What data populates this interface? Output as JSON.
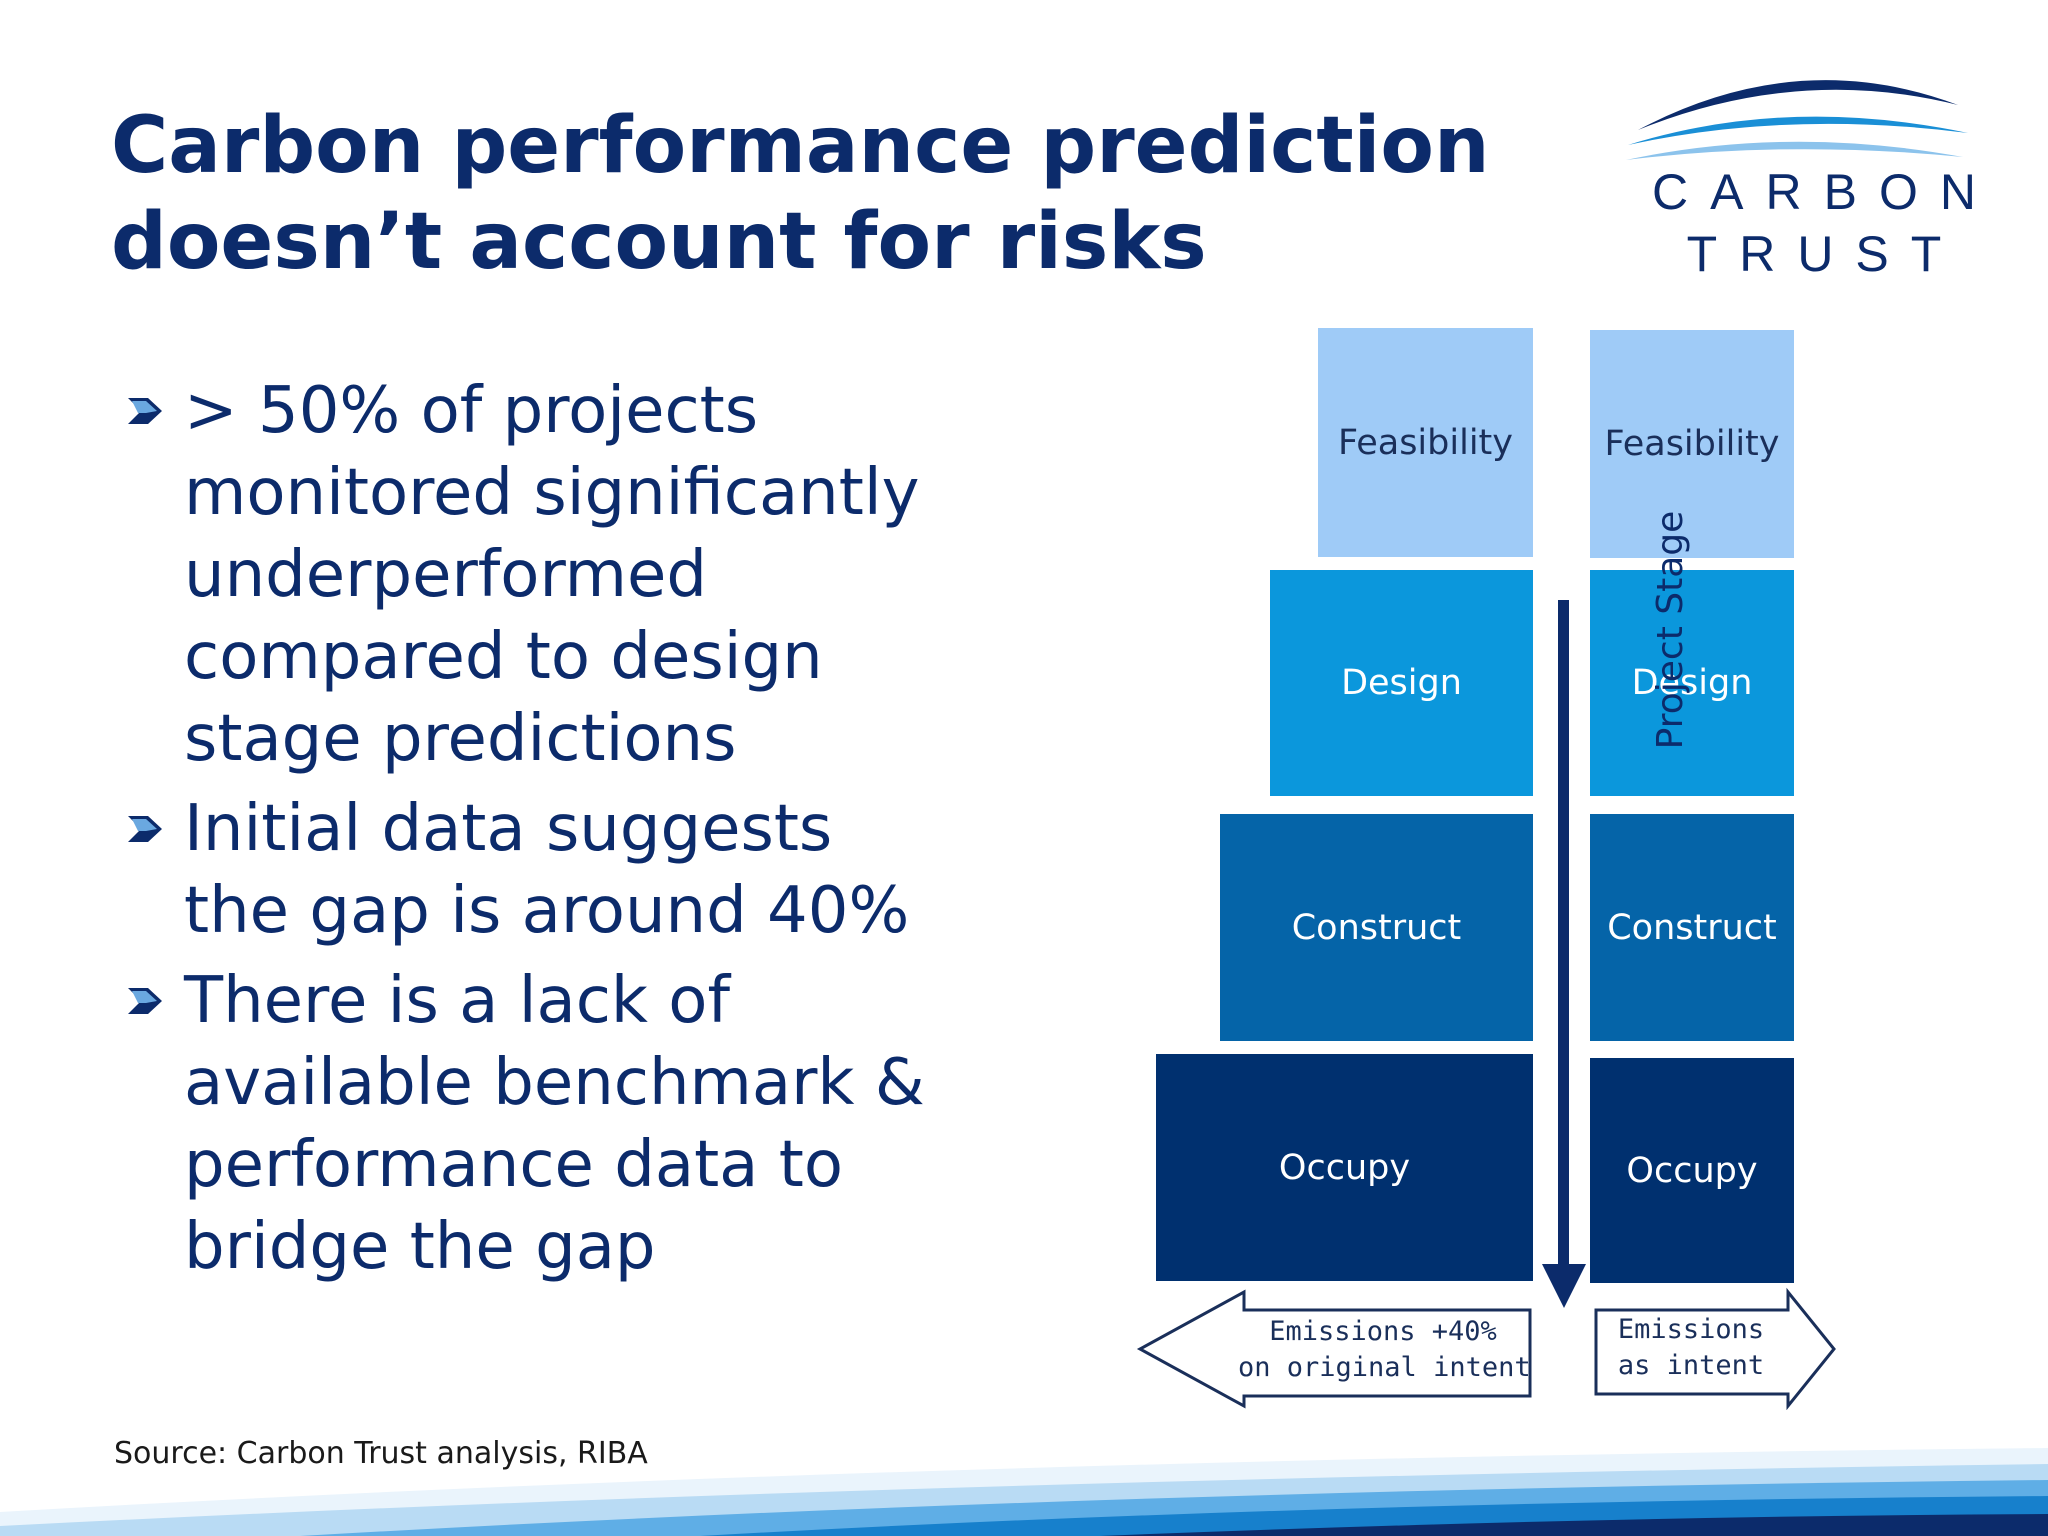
{
  "slide": {
    "title_lines": [
      "Carbon performance prediction",
      "doesn’t account for risks"
    ],
    "source": "Source: Carbon Trust analysis, RIBA"
  },
  "logo": {
    "line1": "CARBON",
    "line2": "TRUST",
    "colors": {
      "arc_dark": "#0c2b6b",
      "arc_mid": "#1a8fd6",
      "arc_light": "#8cc3ec"
    }
  },
  "bullets": [
    {
      "lines": [
        "> 50% of projects",
        "monitored significantly",
        "underperformed",
        "compared to design",
        "stage predictions"
      ]
    },
    {
      "lines": [
        "Initial data suggests",
        "the gap is around 40%"
      ]
    },
    {
      "lines": [
        "There is a lack of",
        "available benchmark &",
        "performance data to",
        "bridge the gap"
      ]
    }
  ],
  "diagram": {
    "axis_label": "Project Stage",
    "left_stages": [
      "Feasibility",
      "Design",
      "Construct",
      "Occupy"
    ],
    "right_stages": [
      "Feasibility",
      "Design",
      "Construct",
      "Occupy"
    ],
    "stage_colors": [
      "#9fcbf7",
      "#0b97dc",
      "#0564a8",
      "#00306f"
    ],
    "left_arrow_lines": [
      "Emissions +40%",
      "on original intent"
    ],
    "right_arrow_lines": [
      "Emissions",
      "as intent"
    ]
  },
  "icons": {
    "bullet": "chevron-bullet-icon",
    "axis_arrow": "down-arrow-icon"
  }
}
